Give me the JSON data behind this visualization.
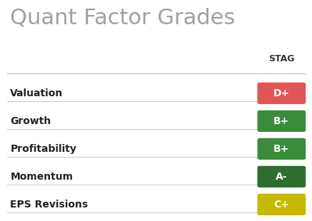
{
  "title": "Quant Factor Grades",
  "title_color": "#a0a0a0",
  "title_fontsize": 22,
  "column_header": "STAG",
  "column_header_color": "#333333",
  "background_color": "#ffffff",
  "rows": [
    {
      "label": "Valuation",
      "grade": "D+",
      "color": "#e05555"
    },
    {
      "label": "Growth",
      "grade": "B+",
      "color": "#3a8c3a"
    },
    {
      "label": "Profitability",
      "grade": "B+",
      "color": "#3a8c3a"
    },
    {
      "label": "Momentum",
      "grade": "A-",
      "color": "#2d6e2d"
    },
    {
      "label": "EPS Revisions",
      "grade": "C+",
      "color": "#c8b800"
    }
  ],
  "figsize": [
    4.37,
    3.1
  ],
  "dpi": 100,
  "line_color": "#bbbbbb",
  "label_color": "#222222",
  "grade_text_color": "#ffffff"
}
